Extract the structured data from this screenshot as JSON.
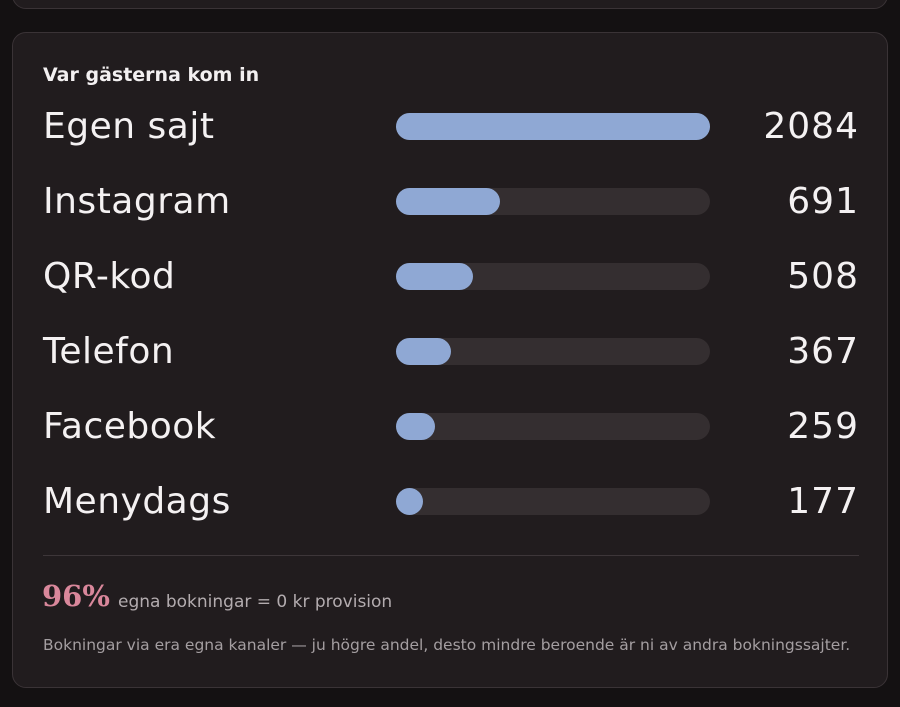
{
  "card": {
    "title": "Var gästerna kom in"
  },
  "chart_data": {
    "type": "bar",
    "categories": [
      "Egen sajt",
      "Instagram",
      "QR-kod",
      "Telefon",
      "Facebook",
      "Menydags"
    ],
    "values": [
      2084,
      691,
      508,
      367,
      259,
      177
    ],
    "title": "Var gästerna kom in",
    "orientation": "horizontal",
    "max": 2084
  },
  "summary": {
    "percent": "96%",
    "caption": "egna bokningar = 0 kr provision",
    "note": "Bokningar via era egna kanaler — ju högre andel, desto mindre beroende är ni av andra bokningssajter."
  },
  "colors": {
    "bar_fill": "#8fa8d4",
    "bar_track": "#342e30",
    "accent_percent": "#d9879b",
    "card_background": "#211c1e"
  }
}
